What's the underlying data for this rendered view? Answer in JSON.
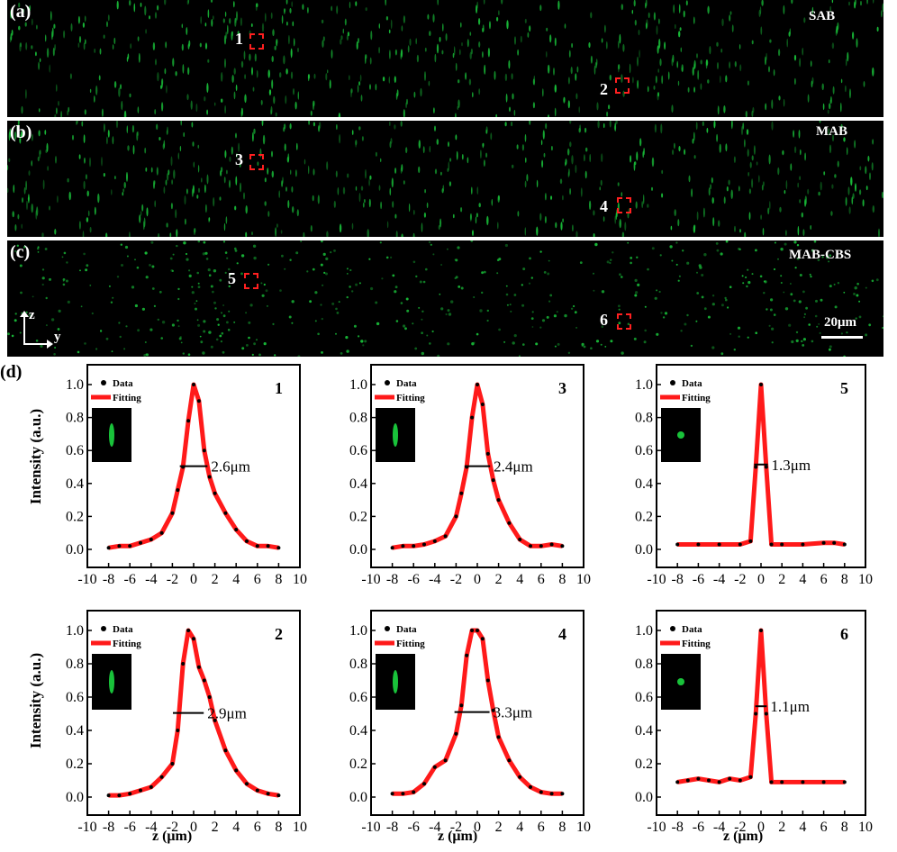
{
  "panels": [
    {
      "label": "(a)",
      "method": "SAB",
      "rois": [
        "1",
        "2"
      ]
    },
    {
      "label": "(b)",
      "method": "MAB",
      "rois": [
        "3",
        "4"
      ]
    },
    {
      "label": "(c)",
      "method": "MAB-CBS",
      "rois": [
        "5",
        "6"
      ]
    }
  ],
  "axes_glyph": {
    "z": "z",
    "y": "y"
  },
  "scale_bar": "20μm",
  "panel_d_label": "(d)",
  "colors": {
    "spot": "#19c23a",
    "roi_box": "#ff2020",
    "fit": "#ff1a1a",
    "data": "#000000"
  },
  "chart_data": [
    {
      "type": "line",
      "title": "1",
      "fwhm_label": "2.6μm",
      "fwhm": 2.6,
      "ylabel": "Intensity (a.u.)",
      "xlabel": "",
      "xlim": [
        -10,
        10
      ],
      "ylim": [
        0,
        1
      ],
      "x": [
        -8,
        -7,
        -6,
        -5,
        -4,
        -3,
        -2,
        -1.5,
        -1,
        -0.5,
        0,
        0.5,
        1,
        1.5,
        2,
        3,
        4,
        5,
        6,
        7,
        8
      ],
      "series": [
        {
          "name": "Data",
          "values": [
            0.01,
            0.02,
            0.02,
            0.04,
            0.06,
            0.1,
            0.22,
            0.36,
            0.5,
            0.78,
            1.0,
            0.9,
            0.6,
            0.44,
            0.34,
            0.22,
            0.12,
            0.05,
            0.02,
            0.02,
            0.01
          ]
        },
        {
          "name": "Fitting",
          "values": [
            0.01,
            0.02,
            0.02,
            0.04,
            0.06,
            0.1,
            0.22,
            0.36,
            0.5,
            0.78,
            1.0,
            0.9,
            0.6,
            0.44,
            0.34,
            0.22,
            0.12,
            0.05,
            0.02,
            0.02,
            0.01
          ]
        }
      ]
    },
    {
      "type": "line",
      "title": "3",
      "fwhm_label": "2.4μm",
      "fwhm": 2.4,
      "ylabel": "",
      "xlabel": "",
      "xlim": [
        -10,
        10
      ],
      "ylim": [
        0,
        1
      ],
      "x": [
        -8,
        -7,
        -6,
        -5,
        -4,
        -3,
        -2,
        -1.5,
        -1,
        -0.5,
        0,
        0.5,
        1,
        1.5,
        2,
        3,
        4,
        5,
        6,
        7,
        8
      ],
      "series": [
        {
          "name": "Data",
          "values": [
            0.01,
            0.02,
            0.02,
            0.03,
            0.05,
            0.08,
            0.2,
            0.34,
            0.5,
            0.8,
            1.0,
            0.88,
            0.58,
            0.42,
            0.3,
            0.16,
            0.06,
            0.02,
            0.02,
            0.03,
            0.02
          ]
        },
        {
          "name": "Fitting",
          "values": [
            0.01,
            0.02,
            0.02,
            0.03,
            0.05,
            0.08,
            0.2,
            0.34,
            0.5,
            0.8,
            1.0,
            0.88,
            0.58,
            0.42,
            0.3,
            0.16,
            0.06,
            0.02,
            0.02,
            0.03,
            0.02
          ]
        }
      ]
    },
    {
      "type": "line",
      "title": "5",
      "fwhm_label": "1.3μm",
      "fwhm": 1.3,
      "ylabel": "",
      "xlabel": "",
      "xlim": [
        -10,
        10
      ],
      "ylim": [
        0,
        1
      ],
      "x": [
        -8,
        -6,
        -4,
        -2,
        -1,
        -0.5,
        0,
        0.5,
        1,
        2,
        4,
        6,
        7,
        8
      ],
      "series": [
        {
          "name": "Data",
          "values": [
            0.03,
            0.03,
            0.03,
            0.03,
            0.05,
            0.5,
            1.0,
            0.5,
            0.03,
            0.03,
            0.03,
            0.04,
            0.04,
            0.03
          ]
        },
        {
          "name": "Fitting",
          "values": [
            0.03,
            0.03,
            0.03,
            0.03,
            0.05,
            0.5,
            1.0,
            0.5,
            0.03,
            0.03,
            0.03,
            0.04,
            0.04,
            0.03
          ]
        }
      ]
    },
    {
      "type": "line",
      "title": "2",
      "fwhm_label": "2.9μm",
      "fwhm": 2.9,
      "ylabel": "Intensity (a.u.)",
      "xlabel": "z (μm)",
      "xlim": [
        -10,
        10
      ],
      "ylim": [
        0,
        1
      ],
      "x": [
        -8,
        -7,
        -6,
        -5,
        -4,
        -3,
        -2,
        -1.5,
        -1,
        -0.5,
        0,
        0.5,
        1,
        1.5,
        2,
        3,
        4,
        5,
        6,
        7,
        8
      ],
      "series": [
        {
          "name": "Data",
          "values": [
            0.01,
            0.01,
            0.02,
            0.04,
            0.06,
            0.12,
            0.2,
            0.4,
            0.8,
            1.0,
            0.95,
            0.78,
            0.7,
            0.6,
            0.46,
            0.28,
            0.16,
            0.08,
            0.04,
            0.02,
            0.01
          ]
        },
        {
          "name": "Fitting",
          "values": [
            0.01,
            0.01,
            0.02,
            0.04,
            0.06,
            0.12,
            0.2,
            0.4,
            0.8,
            1.0,
            0.95,
            0.78,
            0.7,
            0.6,
            0.46,
            0.28,
            0.16,
            0.08,
            0.04,
            0.02,
            0.01
          ]
        }
      ]
    },
    {
      "type": "line",
      "title": "4",
      "fwhm_label": "3.3μm",
      "fwhm": 3.3,
      "ylabel": "",
      "xlabel": "z (μm)",
      "xlim": [
        -10,
        10
      ],
      "ylim": [
        0,
        1
      ],
      "x": [
        -8,
        -7,
        -6,
        -5,
        -4,
        -3,
        -2,
        -1.5,
        -1,
        -0.5,
        0,
        0.5,
        1,
        1.5,
        2,
        3,
        4,
        5,
        6,
        7,
        8
      ],
      "series": [
        {
          "name": "Data",
          "values": [
            0.02,
            0.02,
            0.03,
            0.08,
            0.18,
            0.22,
            0.38,
            0.55,
            0.85,
            1.0,
            1.0,
            0.95,
            0.7,
            0.52,
            0.36,
            0.22,
            0.12,
            0.06,
            0.03,
            0.02,
            0.02
          ]
        },
        {
          "name": "Fitting",
          "values": [
            0.02,
            0.02,
            0.03,
            0.08,
            0.18,
            0.22,
            0.38,
            0.55,
            0.85,
            1.0,
            1.0,
            0.95,
            0.7,
            0.52,
            0.36,
            0.22,
            0.12,
            0.06,
            0.03,
            0.02,
            0.02
          ]
        }
      ]
    },
    {
      "type": "line",
      "title": "6",
      "fwhm_label": "1.1μm",
      "fwhm": 1.1,
      "ylabel": "",
      "xlabel": "z (μm)",
      "xlim": [
        -10,
        10
      ],
      "ylim": [
        0,
        1
      ],
      "x": [
        -8,
        -7,
        -6,
        -5,
        -4,
        -3,
        -2,
        -1,
        -0.5,
        0,
        0.5,
        1,
        2,
        4,
        6,
        8
      ],
      "series": [
        {
          "name": "Data",
          "values": [
            0.09,
            0.1,
            0.11,
            0.1,
            0.09,
            0.11,
            0.1,
            0.12,
            0.5,
            1.0,
            0.5,
            0.09,
            0.09,
            0.09,
            0.09,
            0.09
          ]
        },
        {
          "name": "Fitting",
          "values": [
            0.09,
            0.1,
            0.11,
            0.1,
            0.09,
            0.11,
            0.1,
            0.12,
            0.5,
            1.0,
            0.5,
            0.09,
            0.09,
            0.09,
            0.09,
            0.09
          ]
        }
      ]
    }
  ]
}
